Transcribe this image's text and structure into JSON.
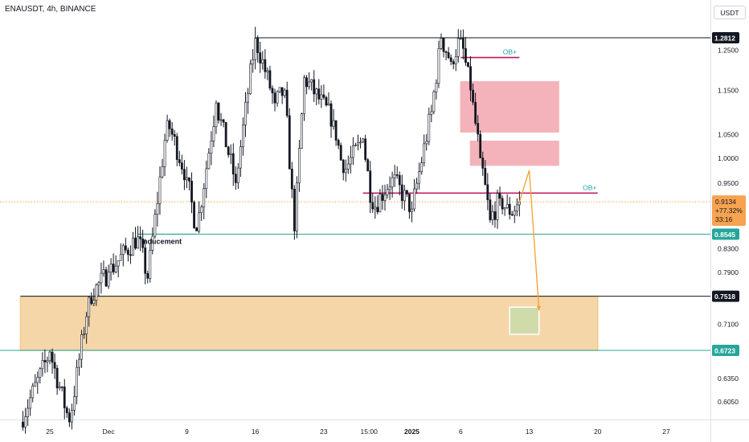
{
  "header": {
    "symbol_title": "ENAUSDT, 4h, BINANCE",
    "currency": "USDT"
  },
  "chart_data": {
    "type": "candlestick",
    "symbol": "ENAUSDT",
    "interval": "4h",
    "exchange": "BINANCE",
    "scale": "log",
    "y_ticks": [
      "1.2500",
      "1.1500",
      "1.0500",
      "1.0000",
      "0.9500",
      "0.8300",
      "0.7900",
      "0.7100",
      "0.6350",
      "0.6050"
    ],
    "x_ticks": [
      {
        "label": "25",
        "date": "2024-11-25"
      },
      {
        "label": "Dec",
        "date": "2024-12-01"
      },
      {
        "label": "9",
        "date": "2024-12-09"
      },
      {
        "label": "16",
        "date": "2024-12-16"
      },
      {
        "label": "23",
        "date": "2024-12-23"
      },
      {
        "label": "15:00",
        "date": "2024-12-27 15:00"
      },
      {
        "label": "2025",
        "date": "2025-01-01"
      },
      {
        "label": "6",
        "date": "2025-01-06"
      },
      {
        "label": "13",
        "date": "2025-01-13"
      },
      {
        "label": "20",
        "date": "2025-01-20"
      },
      {
        "label": "27",
        "date": "2025-01-27"
      }
    ],
    "price_tags": [
      {
        "price": 1.2812,
        "label": "1.2812",
        "style": "black"
      },
      {
        "price": 0.8545,
        "label": "0.8545",
        "style": "teal"
      },
      {
        "price": 0.7518,
        "label": "0.7518",
        "style": "black"
      },
      {
        "price": 0.6723,
        "label": "0.6723",
        "style": "teal"
      }
    ],
    "last_price": {
      "price": 0.9134,
      "label": "0.9134",
      "change": "+77.32%",
      "countdown": "33:16"
    },
    "swing_points": [
      {
        "date": "2024-11-22",
        "price": 0.58
      },
      {
        "date": "2024-11-25",
        "price": 0.67
      },
      {
        "date": "2024-11-27",
        "price": 0.58
      },
      {
        "date": "2024-11-29",
        "price": 0.75
      },
      {
        "date": "2024-12-01",
        "price": 0.79
      },
      {
        "date": "2024-12-04",
        "price": 0.85
      },
      {
        "date": "2024-12-05",
        "price": 0.78
      },
      {
        "date": "2024-12-07",
        "price": 1.08
      },
      {
        "date": "2024-12-09",
        "price": 0.96
      },
      {
        "date": "2024-12-10",
        "price": 0.86
      },
      {
        "date": "2024-12-12",
        "price": 1.12
      },
      {
        "date": "2024-12-14",
        "price": 0.95
      },
      {
        "date": "2024-12-16",
        "price": 1.28
      },
      {
        "date": "2024-12-18",
        "price": 1.12
      },
      {
        "date": "2024-12-19",
        "price": 1.15
      },
      {
        "date": "2024-12-20",
        "price": 0.86
      },
      {
        "date": "2024-12-21",
        "price": 1.18
      },
      {
        "date": "2024-12-24",
        "price": 1.08
      },
      {
        "date": "2024-12-25",
        "price": 0.97
      },
      {
        "date": "2024-12-27",
        "price": 1.04
      },
      {
        "date": "2024-12-28",
        "price": 0.9
      },
      {
        "date": "2024-12-30",
        "price": 0.96
      },
      {
        "date": "2025-01-01",
        "price": 0.9
      },
      {
        "date": "2025-01-03",
        "price": 1.1
      },
      {
        "date": "2025-01-04",
        "price": 1.28
      },
      {
        "date": "2025-01-05",
        "price": 1.22
      },
      {
        "date": "2025-01-06",
        "price": 1.28
      },
      {
        "date": "2025-01-07",
        "price": 1.15
      },
      {
        "date": "2025-01-08",
        "price": 1.0
      },
      {
        "date": "2025-01-09",
        "price": 0.88
      },
      {
        "date": "2025-01-10",
        "price": 0.92
      },
      {
        "date": "2025-01-11",
        "price": 0.89
      },
      {
        "date": "2025-01-12",
        "price": 0.9134
      }
    ],
    "annotations": {
      "inducement": {
        "text": "Inducement",
        "price": 0.8545,
        "from": "2024-12-04",
        "to": "2025-01-30"
      },
      "ob_labels": [
        {
          "text": "OB+",
          "price": 1.23,
          "from": "2025-01-06",
          "to": "2025-01-12"
        },
        {
          "text": "OB+",
          "price": 0.93,
          "from": "2024-12-27",
          "to": "2025-01-20"
        }
      ],
      "zones": [
        {
          "kind": "supply",
          "from": "2025-01-06",
          "to": "2025-01-16",
          "top": 1.17,
          "bottom": 1.055
        },
        {
          "kind": "supply",
          "from": "2025-01-07",
          "to": "2025-01-16",
          "top": 1.035,
          "bottom": 0.985
        },
        {
          "kind": "demand",
          "from": "2024-11-22",
          "to": "2025-01-20",
          "top": 0.7518,
          "bottom": 0.6723
        },
        {
          "kind": "target",
          "from": "2025-01-11",
          "to": "2025-01-14",
          "top": 0.735,
          "bottom": 0.695
        }
      ],
      "projection": [
        {
          "date": "2025-01-12",
          "price": 0.9134
        },
        {
          "date": "2025-01-13",
          "price": 0.975
        },
        {
          "date": "2025-01-14",
          "price": 0.73
        }
      ]
    }
  }
}
